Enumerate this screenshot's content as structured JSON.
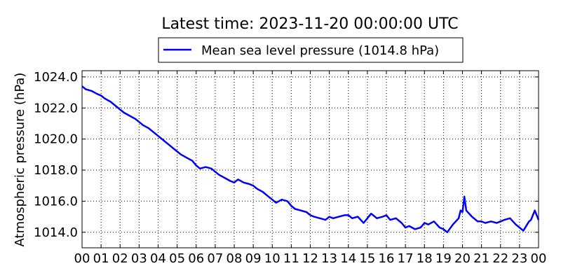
{
  "chart_data": {
    "type": "line",
    "title": "Latest time: 2023-11-20 00:00:00 UTC",
    "xlabel": "",
    "ylabel": "Atmospheric pressure (hPa)",
    "xlim": [
      0,
      24
    ],
    "ylim": [
      1013.0,
      1024.4
    ],
    "grid": true,
    "legend_position": "top-center",
    "x_ticks": [
      0,
      1,
      2,
      3,
      4,
      5,
      6,
      7,
      8,
      9,
      10,
      11,
      12,
      13,
      14,
      15,
      16,
      17,
      18,
      19,
      20,
      21,
      22,
      23,
      24
    ],
    "x_tick_labels": [
      "00",
      "01",
      "02",
      "03",
      "04",
      "05",
      "06",
      "07",
      "08",
      "09",
      "10",
      "11",
      "12",
      "13",
      "14",
      "15",
      "16",
      "17",
      "18",
      "19",
      "20",
      "21",
      "22",
      "23",
      "00"
    ],
    "y_ticks": [
      1014,
      1016,
      1018,
      1020,
      1022,
      1024
    ],
    "y_tick_labels": [
      "1014.0",
      "1016.0",
      "1018.0",
      "1020.0",
      "1022.0",
      "1024.0"
    ],
    "series": [
      {
        "name": "Mean sea level pressure (1014.8 hPa)",
        "color": "#0000ff",
        "x": [
          0,
          0.2,
          0.5,
          0.8,
          1.0,
          1.2,
          1.5,
          1.8,
          2.0,
          2.2,
          2.5,
          2.8,
          3.0,
          3.2,
          3.5,
          3.8,
          4.0,
          4.2,
          4.5,
          4.8,
          5.0,
          5.2,
          5.5,
          5.8,
          6.0,
          6.2,
          6.5,
          6.8,
          7.0,
          7.2,
          7.5,
          7.8,
          8.0,
          8.2,
          8.5,
          8.8,
          9.0,
          9.2,
          9.5,
          9.8,
          10.0,
          10.2,
          10.5,
          10.8,
          11.0,
          11.2,
          11.5,
          11.8,
          12.0,
          12.2,
          12.5,
          12.8,
          13.0,
          13.2,
          13.5,
          13.8,
          14.0,
          14.2,
          14.5,
          14.8,
          15.0,
          15.2,
          15.5,
          15.8,
          16.0,
          16.2,
          16.5,
          16.8,
          17.0,
          17.2,
          17.5,
          17.8,
          18.0,
          18.2,
          18.5,
          18.8,
          19.0,
          19.2,
          19.5,
          19.8,
          19.9,
          20.0,
          20.1,
          20.2,
          20.5,
          20.8,
          21.0,
          21.2,
          21.5,
          21.8,
          22.0,
          22.2,
          22.5,
          22.8,
          23.0,
          23.2,
          23.4,
          23.5,
          23.6,
          23.8,
          24.0
        ],
        "y": [
          1023.4,
          1023.2,
          1023.1,
          1022.9,
          1022.8,
          1022.6,
          1022.4,
          1022.1,
          1021.9,
          1021.7,
          1021.5,
          1021.3,
          1021.1,
          1020.9,
          1020.7,
          1020.4,
          1020.2,
          1020.0,
          1019.7,
          1019.4,
          1019.2,
          1019.0,
          1018.8,
          1018.6,
          1018.3,
          1018.1,
          1018.2,
          1018.1,
          1017.9,
          1017.7,
          1017.5,
          1017.3,
          1017.2,
          1017.4,
          1017.2,
          1017.1,
          1017.0,
          1016.8,
          1016.6,
          1016.3,
          1016.1,
          1015.9,
          1016.1,
          1016.0,
          1015.7,
          1015.5,
          1015.4,
          1015.3,
          1015.1,
          1015.0,
          1014.9,
          1014.8,
          1015.0,
          1014.9,
          1015.0,
          1015.1,
          1015.1,
          1014.9,
          1015.0,
          1014.6,
          1014.9,
          1015.2,
          1014.9,
          1015.0,
          1015.1,
          1014.8,
          1014.9,
          1014.6,
          1014.3,
          1014.4,
          1014.2,
          1014.3,
          1014.6,
          1014.5,
          1014.7,
          1014.3,
          1014.2,
          1014.0,
          1014.5,
          1014.9,
          1015.4,
          1015.3,
          1016.3,
          1015.4,
          1015.0,
          1014.7,
          1014.7,
          1014.6,
          1014.7,
          1014.6,
          1014.7,
          1014.8,
          1014.9,
          1014.5,
          1014.3,
          1014.1,
          1014.5,
          1014.7,
          1014.8,
          1015.4,
          1014.8
        ]
      }
    ]
  }
}
